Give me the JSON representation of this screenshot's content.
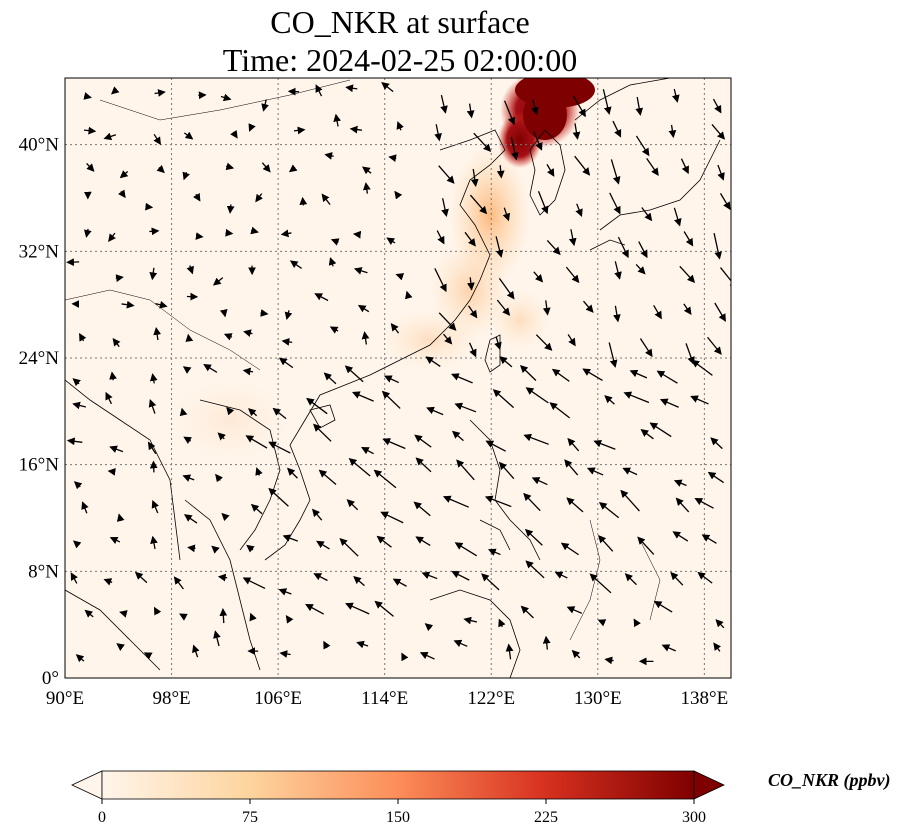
{
  "title": {
    "line1": "CO_NKR at surface",
    "line2": "Time: 2024-02-25 02:00:00"
  },
  "map": {
    "lon_range": [
      90,
      140
    ],
    "lat_range": [
      0,
      45
    ],
    "lon_ticks": [
      "90°E",
      "98°E",
      "106°E",
      "114°E",
      "122°E",
      "130°E",
      "138°E"
    ],
    "lat_ticks": [
      "0°",
      "8°N",
      "16°N",
      "24°N",
      "32°N",
      "40°N"
    ],
    "gridlines": true,
    "gridline_style": "dotted"
  },
  "colorbar": {
    "label": "CO_NKR (ppbv)",
    "ticks": [
      "0",
      "75",
      "150",
      "225",
      "300"
    ],
    "range": [
      0,
      300
    ],
    "extend": "both",
    "colors": [
      "#fff5eb",
      "#fdd49e",
      "#fc8d59",
      "#d7301f",
      "#7f0000"
    ]
  }
}
